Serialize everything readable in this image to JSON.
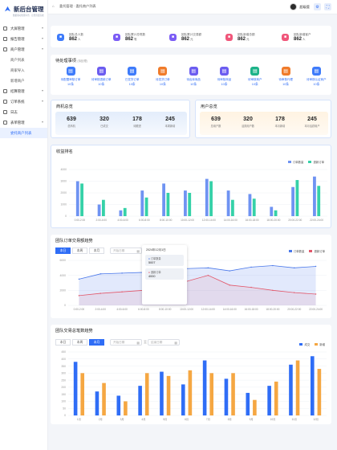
{
  "app": {
    "title": "新后台管理",
    "subtitle": "数据驱动管理平台 · 让经营更高效"
  },
  "sidebar": {
    "items": [
      {
        "label": "大屏管理",
        "level": 1,
        "arrow": "▾"
      },
      {
        "label": "报告管理",
        "level": 1,
        "arrow": "▾"
      },
      {
        "label": "商户管理",
        "level": 1,
        "arrow": "▾"
      },
      {
        "label": "商户列表",
        "level": 2
      },
      {
        "label": "商家导入",
        "level": 2
      },
      {
        "label": "新增商户",
        "level": 2
      },
      {
        "label": "结算管理",
        "level": 1,
        "arrow": "▾"
      },
      {
        "label": "订单系统",
        "level": 1,
        "arrow": "▾"
      },
      {
        "label": "日志",
        "level": 1,
        "arrow": ""
      },
      {
        "label": "表单管理",
        "level": 1,
        "arrow": "▾"
      },
      {
        "label": "委托商户列表",
        "level": 2,
        "active": true
      }
    ]
  },
  "topbar": {
    "home": "⌂",
    "breadcrumb": "委托管理 · 委托商户列表",
    "user": "超级管"
  },
  "stats": [
    {
      "label": "团队总人数",
      "value": "862",
      "unit": "人",
      "color": "#3e7bfa",
      "icon": "people-icon"
    },
    {
      "label": "团队累计总笔数",
      "value": "862",
      "unit": "笔",
      "color": "#7b5cf5",
      "icon": "document-icon"
    },
    {
      "label": "团队累计交易额",
      "value": "862",
      "unit": "元",
      "color": "#7b5cf5",
      "icon": "wallet-icon"
    },
    {
      "label": "团队新增总额",
      "value": "862",
      "unit": "元",
      "color": "#f0567a",
      "icon": "chart-icon"
    },
    {
      "label": "团队新增客户",
      "value": "862",
      "unit": "人",
      "color": "#f0567a",
      "icon": "user-add-icon"
    }
  ],
  "todo": {
    "title": "待处理事项",
    "subtitle": "(待处理)",
    "items": [
      {
        "label": "待配置审核订单",
        "value": "10条",
        "color": "#3e7bfa",
        "icon": "receipt-icon"
      },
      {
        "label": "待审核退款订单",
        "value": "10条",
        "color": "#6b5cf0",
        "icon": "refund-icon"
      },
      {
        "label": "已发货订单",
        "value": "10条",
        "color": "#3e7bfa",
        "icon": "truck-icon"
      },
      {
        "label": "待发货订单",
        "value": "10条",
        "color": "#f07b2a",
        "icon": "box-icon"
      },
      {
        "label": "待出库商品",
        "value": "10条",
        "color": "#6b5cf0",
        "icon": "package-icon"
      },
      {
        "label": "待审核商品",
        "value": "10条",
        "color": "#6b5cf0",
        "icon": "check-icon"
      },
      {
        "label": "待审核商户",
        "value": "10条",
        "color": "#1db389",
        "icon": "shop-icon"
      },
      {
        "label": "待审核代理",
        "value": "10条",
        "color": "#f07b2a",
        "icon": "agent-icon"
      },
      {
        "label": "待审核认证商户",
        "value": "10条",
        "color": "#3e7bfa",
        "icon": "badge-icon"
      }
    ]
  },
  "ranking": {
    "title": "商机总览",
    "metrics": [
      {
        "value": "639",
        "label": "总商机"
      },
      {
        "value": "320",
        "label": "已成交"
      },
      {
        "value": "178",
        "label": "待跟进"
      },
      {
        "value": "245",
        "label": "本周新增"
      }
    ]
  },
  "users": {
    "title": "用户总览",
    "metrics": [
      {
        "value": "639",
        "label": "总用户数"
      },
      {
        "value": "320",
        "label": "活跃用户数"
      },
      {
        "value": "178",
        "label": "本月新增"
      },
      {
        "value": "245",
        "label": "本月活跃用户"
      }
    ]
  },
  "bar1": {
    "title": "收益排名",
    "legend": [
      "订单数量",
      "退款订单"
    ]
  },
  "line1": {
    "title": "团队订单交易额趋势",
    "tabs": [
      "本日",
      "本周",
      "本月"
    ],
    "active_tab": 0,
    "date_start": "开始日期",
    "date_end": "结束日期",
    "legend": [
      "订单数量",
      "退款订单"
    ],
    "tooltip": {
      "title": "2024年12月1日",
      "rows": [
        {
          "label": "订单数量",
          "value": "5007"
        },
        {
          "label": "退款订单",
          "value": "4000"
        }
      ]
    }
  },
  "bar2": {
    "title": "团队交易总笔数趋势",
    "tabs": [
      "本日",
      "本周",
      "本月"
    ],
    "active_tab": 2,
    "date_start": "开始日期",
    "date_end": "结束日期",
    "legend": [
      "成交",
      "新增"
    ]
  },
  "chart_data": [
    {
      "type": "bar",
      "title": "收益排名",
      "categories": [
        "0:00-2:00",
        "2:00-4:00",
        "4:00-6:00",
        "6:00-8:00",
        "8:00-10:00",
        "10:00-12:00",
        "12:00-14:00",
        "14:00-16:00",
        "16:00-18:00",
        "18:00-20:00",
        "20:00-22:00",
        "22:00-24:00"
      ],
      "series": [
        {
          "name": "订单数量",
          "color": "#6f93f2",
          "values": [
            3000,
            1000,
            500,
            2200,
            2800,
            2200,
            3200,
            2200,
            1900,
            800,
            2500,
            3400
          ]
        },
        {
          "name": "退款订单",
          "color": "#35d1a8",
          "values": [
            2800,
            1400,
            700,
            1600,
            2000,
            2000,
            3000,
            1400,
            1500,
            500,
            3100,
            2600
          ]
        }
      ],
      "ylim": [
        0,
        4000
      ],
      "yticks": [
        0,
        1000,
        2000,
        3000,
        4000
      ]
    },
    {
      "type": "area",
      "title": "团队订单交易额趋势",
      "categories": [
        "0:00-2:00",
        "2:00-4:00",
        "4:00-6:00",
        "6:00-8:00",
        "8:00-10:00",
        "10:00-12:00",
        "12:00-14:00",
        "14:00-16:00",
        "16:00-18:00",
        "18:00-20:00",
        "20:00-22:00",
        "22:00-24:00"
      ],
      "series": [
        {
          "name": "订单数量",
          "color": "#4a78ea",
          "values": [
            3500,
            4200,
            4300,
            4400,
            4600,
            4900,
            5000,
            4600,
            5100,
            5300,
            5000,
            5200
          ]
        },
        {
          "name": "退款订单",
          "color": "#e2576a",
          "values": [
            1300,
            1600,
            1800,
            2000,
            2600,
            3200,
            4000,
            2700,
            2400,
            2000,
            1700,
            1500
          ]
        }
      ],
      "ylim": [
        0,
        6000
      ],
      "yticks": [
        0,
        2000,
        4000,
        6000
      ]
    },
    {
      "type": "bar",
      "title": "团队交易总笔数趋势",
      "categories": [
        "1月",
        "2月",
        "3月",
        "4月",
        "5月",
        "6月",
        "7月",
        "8月",
        "9月",
        "10月",
        "11月",
        "12月"
      ],
      "series": [
        {
          "name": "成交",
          "color": "#2f6df6",
          "values": [
            380,
            170,
            140,
            210,
            310,
            220,
            390,
            260,
            160,
            210,
            360,
            420
          ]
        },
        {
          "name": "新增",
          "color": "#f5a742",
          "values": [
            300,
            230,
            100,
            300,
            280,
            320,
            300,
            300,
            110,
            240,
            390,
            330
          ]
        }
      ],
      "ylim": [
        0,
        450
      ],
      "yticks": [
        0,
        50,
        100,
        150,
        200,
        250,
        300,
        350,
        400,
        450
      ]
    }
  ]
}
